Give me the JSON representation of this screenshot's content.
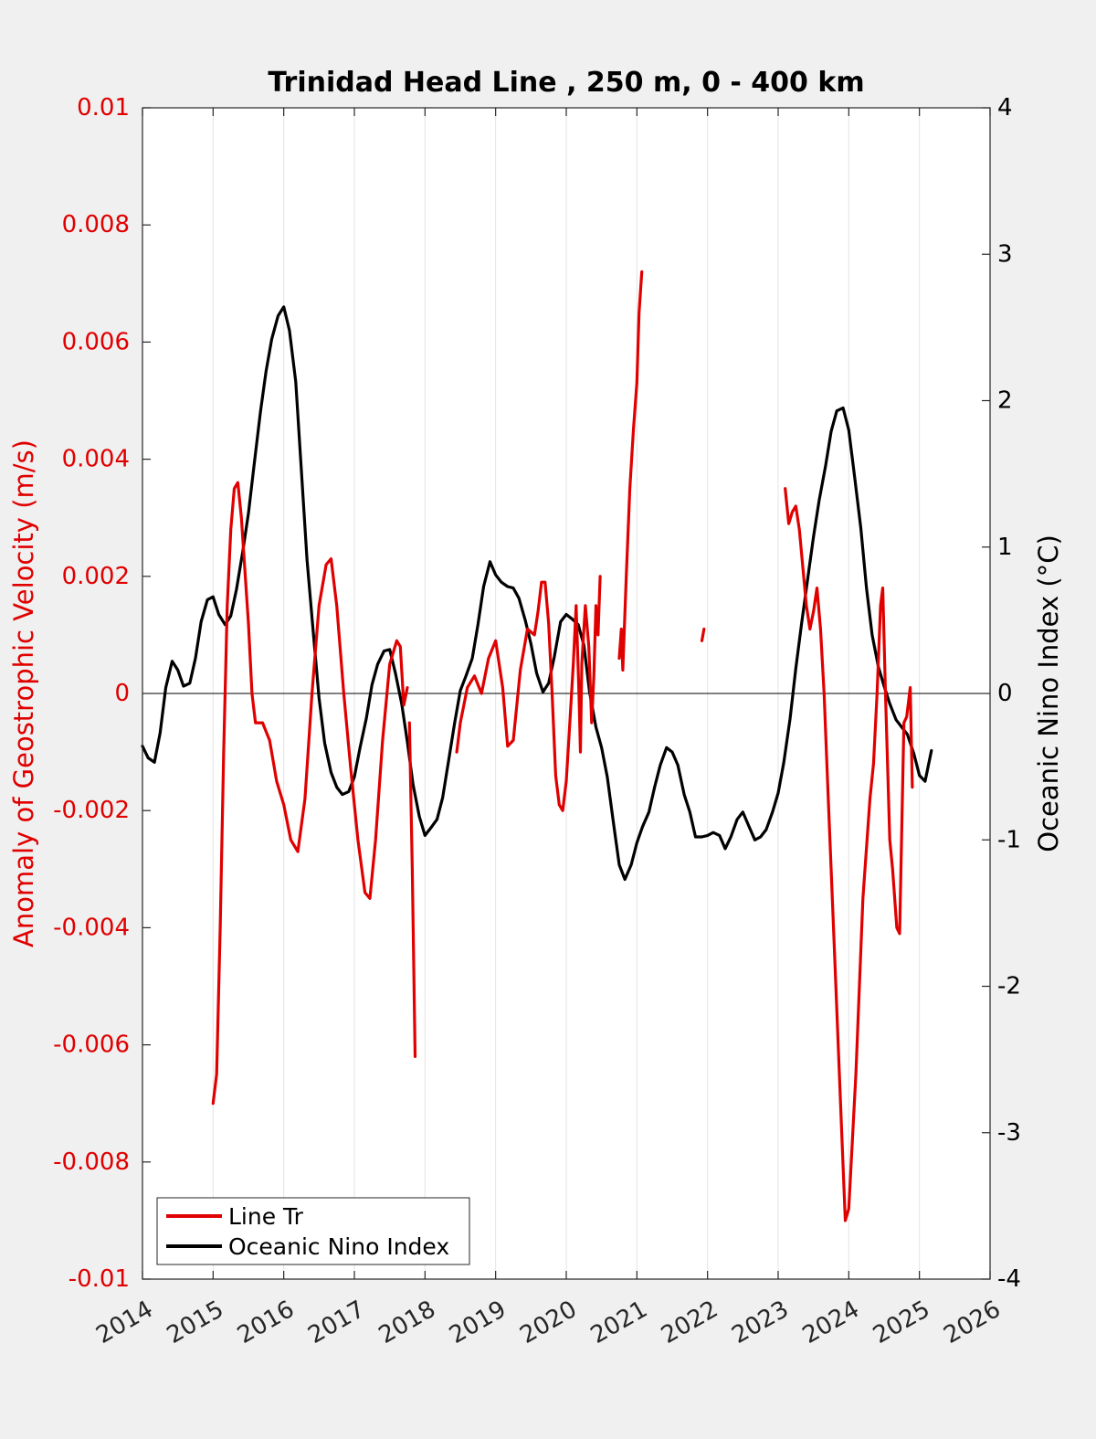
{
  "chart_data": {
    "type": "line",
    "title": "Trinidad Head Line , 250 m, 0 - 400 km",
    "xlim": [
      2014,
      2026
    ],
    "x_ticks": [
      "2014",
      "2015",
      "2016",
      "2017",
      "2018",
      "2019",
      "2020",
      "2021",
      "2022",
      "2023",
      "2024",
      "2025",
      "2026"
    ],
    "y_left": {
      "label": "Anomaly of Geostrophic Velocity (m/s)",
      "range": [
        -0.01,
        0.01
      ],
      "ticks": [
        "-0.01",
        "-0.008",
        "-0.006",
        "-0.004",
        "-0.002",
        "0",
        "0.002",
        "0.004",
        "0.006",
        "0.008",
        "0.01"
      ],
      "color": "#e00000"
    },
    "y_right": {
      "label": "Oceanic Nino Index (°C)",
      "range": [
        -4,
        4
      ],
      "ticks": [
        "-4",
        "-3",
        "-2",
        "-1",
        "0",
        "1",
        "2",
        "3",
        "4"
      ],
      "color": "#000000"
    },
    "grid": "vertical",
    "zero_line": true,
    "legend": {
      "position": "bottom-left"
    },
    "series": [
      {
        "name": "Line Tr",
        "axis": "left",
        "color": "#e00000",
        "segments": [
          [
            [
              2015.0,
              -0.007
            ],
            [
              2015.05,
              -0.0065
            ],
            [
              2015.1,
              -0.004
            ],
            [
              2015.15,
              -0.001
            ],
            [
              2015.2,
              0.0015
            ],
            [
              2015.25,
              0.0028
            ],
            [
              2015.3,
              0.0035
            ],
            [
              2015.35,
              0.0036
            ],
            [
              2015.4,
              0.003
            ],
            [
              2015.5,
              0.0012
            ],
            [
              2015.55,
              0.0
            ],
            [
              2015.6,
              -0.0005
            ],
            [
              2015.7,
              -0.0005
            ],
            [
              2015.8,
              -0.0008
            ],
            [
              2015.9,
              -0.0015
            ],
            [
              2016.0,
              -0.0019
            ],
            [
              2016.1,
              -0.0025
            ],
            [
              2016.2,
              -0.0027
            ],
            [
              2016.3,
              -0.0018
            ],
            [
              2016.4,
              0.0
            ],
            [
              2016.5,
              0.0015
            ],
            [
              2016.6,
              0.0022
            ],
            [
              2016.67,
              0.0023
            ],
            [
              2016.75,
              0.0015
            ],
            [
              2016.85,
              0.0
            ],
            [
              2016.95,
              -0.0013
            ],
            [
              2017.05,
              -0.0025
            ],
            [
              2017.15,
              -0.0034
            ],
            [
              2017.22,
              -0.0035
            ],
            [
              2017.3,
              -0.0025
            ],
            [
              2017.4,
              -0.0008
            ],
            [
              2017.5,
              0.0005
            ],
            [
              2017.6,
              0.0009
            ],
            [
              2017.65,
              0.0008
            ],
            [
              2017.7,
              -0.0002
            ],
            [
              2017.75,
              0.0001
            ]
          ],
          [
            [
              2017.78,
              -0.0005
            ],
            [
              2017.82,
              -0.003
            ],
            [
              2017.86,
              -0.0062
            ]
          ],
          [
            [
              2018.45,
              -0.001
            ],
            [
              2018.5,
              -0.0005
            ],
            [
              2018.6,
              0.0001
            ],
            [
              2018.7,
              0.0003
            ],
            [
              2018.8,
              0.0
            ],
            [
              2018.9,
              0.0006
            ],
            [
              2019.0,
              0.0009
            ],
            [
              2019.1,
              0.0001
            ],
            [
              2019.17,
              -0.0009
            ],
            [
              2019.25,
              -0.0008
            ],
            [
              2019.35,
              0.0004
            ],
            [
              2019.45,
              0.0011
            ],
            [
              2019.55,
              0.001
            ],
            [
              2019.6,
              0.0014
            ],
            [
              2019.65,
              0.0019
            ],
            [
              2019.7,
              0.0019
            ],
            [
              2019.75,
              0.0012
            ],
            [
              2019.8,
              0.0
            ],
            [
              2019.85,
              -0.0014
            ],
            [
              2019.9,
              -0.0019
            ],
            [
              2019.95,
              -0.002
            ],
            [
              2020.0,
              -0.0015
            ],
            [
              2020.05,
              -0.0005
            ],
            [
              2020.1,
              0.0005
            ],
            [
              2020.14,
              0.0015
            ],
            [
              2020.18,
              0.0
            ],
            [
              2020.2,
              -0.001
            ],
            [
              2020.22,
              0.0005
            ],
            [
              2020.27,
              0.0015
            ],
            [
              2020.32,
              0.0008
            ],
            [
              2020.36,
              -0.0005
            ],
            [
              2020.39,
              0.0003
            ],
            [
              2020.42,
              0.0015
            ],
            [
              2020.45,
              0.001
            ],
            [
              2020.48,
              0.002
            ]
          ],
          [
            [
              2020.75,
              0.0006
            ],
            [
              2020.78,
              0.0011
            ],
            [
              2020.8,
              0.0004
            ],
            [
              2020.85,
              0.002
            ],
            [
              2020.9,
              0.0035
            ],
            [
              2020.95,
              0.0045
            ],
            [
              2021.0,
              0.0053
            ],
            [
              2021.03,
              0.0065
            ],
            [
              2021.07,
              0.0072
            ]
          ],
          [
            [
              2021.92,
              0.0009
            ],
            [
              2021.95,
              0.0011
            ]
          ],
          [
            [
              2023.1,
              0.0035
            ],
            [
              2023.15,
              0.0029
            ],
            [
              2023.2,
              0.0031
            ],
            [
              2023.25,
              0.0032
            ],
            [
              2023.3,
              0.0028
            ],
            [
              2023.4,
              0.0015
            ],
            [
              2023.45,
              0.0011
            ],
            [
              2023.5,
              0.0014
            ],
            [
              2023.55,
              0.0018
            ],
            [
              2023.6,
              0.0011
            ],
            [
              2023.65,
              0.0
            ],
            [
              2023.7,
              -0.0015
            ],
            [
              2023.8,
              -0.0045
            ],
            [
              2023.9,
              -0.0075
            ],
            [
              2023.95,
              -0.009
            ],
            [
              2024.0,
              -0.0088
            ],
            [
              2024.1,
              -0.0065
            ],
            [
              2024.2,
              -0.0035
            ],
            [
              2024.3,
              -0.0018
            ],
            [
              2024.35,
              -0.0012
            ],
            [
              2024.4,
              0.0
            ],
            [
              2024.45,
              0.0015
            ],
            [
              2024.48,
              0.0018
            ],
            [
              2024.52,
              0.0
            ],
            [
              2024.58,
              -0.0025
            ],
            [
              2024.62,
              -0.003
            ],
            [
              2024.68,
              -0.004
            ],
            [
              2024.72,
              -0.0041
            ],
            [
              2024.78,
              -0.0005
            ],
            [
              2024.82,
              -0.0004
            ],
            [
              2024.87,
              0.0001
            ],
            [
              2024.9,
              -0.0016
            ]
          ]
        ]
      },
      {
        "name": "Oceanic Nino Index",
        "axis": "right",
        "color": "#000000",
        "points": [
          [
            2014.0,
            -0.36
          ],
          [
            2014.08,
            -0.44
          ],
          [
            2014.17,
            -0.47
          ],
          [
            2014.25,
            -0.27
          ],
          [
            2014.33,
            0.04
          ],
          [
            2014.42,
            0.22
          ],
          [
            2014.5,
            0.16
          ],
          [
            2014.58,
            0.05
          ],
          [
            2014.67,
            0.07
          ],
          [
            2014.75,
            0.24
          ],
          [
            2014.83,
            0.49
          ],
          [
            2014.92,
            0.64
          ],
          [
            2015.0,
            0.66
          ],
          [
            2015.08,
            0.54
          ],
          [
            2015.17,
            0.47
          ],
          [
            2015.25,
            0.53
          ],
          [
            2015.33,
            0.71
          ],
          [
            2015.42,
            0.97
          ],
          [
            2015.5,
            1.23
          ],
          [
            2015.58,
            1.56
          ],
          [
            2015.67,
            1.92
          ],
          [
            2015.75,
            2.2
          ],
          [
            2015.83,
            2.42
          ],
          [
            2015.92,
            2.58
          ],
          [
            2016.0,
            2.64
          ],
          [
            2016.08,
            2.48
          ],
          [
            2016.17,
            2.13
          ],
          [
            2016.25,
            1.52
          ],
          [
            2016.33,
            0.91
          ],
          [
            2016.42,
            0.41
          ],
          [
            2016.5,
            -0.03
          ],
          [
            2016.58,
            -0.34
          ],
          [
            2016.67,
            -0.54
          ],
          [
            2016.75,
            -0.64
          ],
          [
            2016.83,
            -0.69
          ],
          [
            2016.92,
            -0.67
          ],
          [
            2017.0,
            -0.57
          ],
          [
            2017.08,
            -0.37
          ],
          [
            2017.17,
            -0.17
          ],
          [
            2017.25,
            0.06
          ],
          [
            2017.33,
            0.2
          ],
          [
            2017.42,
            0.29
          ],
          [
            2017.5,
            0.3
          ],
          [
            2017.58,
            0.14
          ],
          [
            2017.67,
            -0.07
          ],
          [
            2017.75,
            -0.33
          ],
          [
            2017.83,
            -0.62
          ],
          [
            2017.92,
            -0.84
          ],
          [
            2018.0,
            -0.97
          ],
          [
            2018.08,
            -0.92
          ],
          [
            2018.17,
            -0.86
          ],
          [
            2018.25,
            -0.71
          ],
          [
            2018.33,
            -0.47
          ],
          [
            2018.42,
            -0.2
          ],
          [
            2018.5,
            0.02
          ],
          [
            2018.58,
            0.12
          ],
          [
            2018.67,
            0.24
          ],
          [
            2018.75,
            0.47
          ],
          [
            2018.83,
            0.73
          ],
          [
            2018.92,
            0.9
          ],
          [
            2019.0,
            0.81
          ],
          [
            2019.08,
            0.76
          ],
          [
            2019.17,
            0.73
          ],
          [
            2019.25,
            0.72
          ],
          [
            2019.33,
            0.65
          ],
          [
            2019.42,
            0.5
          ],
          [
            2019.5,
            0.34
          ],
          [
            2019.58,
            0.14
          ],
          [
            2019.67,
            0.01
          ],
          [
            2019.75,
            0.07
          ],
          [
            2019.83,
            0.25
          ],
          [
            2019.92,
            0.49
          ],
          [
            2020.0,
            0.54
          ],
          [
            2020.08,
            0.51
          ],
          [
            2020.17,
            0.47
          ],
          [
            2020.25,
            0.33
          ],
          [
            2020.33,
            0.01
          ],
          [
            2020.42,
            -0.23
          ],
          [
            2020.5,
            -0.37
          ],
          [
            2020.58,
            -0.57
          ],
          [
            2020.67,
            -0.89
          ],
          [
            2020.75,
            -1.17
          ],
          [
            2020.83,
            -1.27
          ],
          [
            2020.92,
            -1.17
          ],
          [
            2021.0,
            -1.02
          ],
          [
            2021.08,
            -0.91
          ],
          [
            2021.17,
            -0.81
          ],
          [
            2021.25,
            -0.64
          ],
          [
            2021.33,
            -0.49
          ],
          [
            2021.42,
            -0.37
          ],
          [
            2021.5,
            -0.4
          ],
          [
            2021.58,
            -0.49
          ],
          [
            2021.67,
            -0.69
          ],
          [
            2021.75,
            -0.81
          ],
          [
            2021.83,
            -0.98
          ],
          [
            2021.92,
            -0.98
          ],
          [
            2022.0,
            -0.97
          ],
          [
            2022.08,
            -0.95
          ],
          [
            2022.17,
            -0.97
          ],
          [
            2022.25,
            -1.06
          ],
          [
            2022.33,
            -0.98
          ],
          [
            2022.42,
            -0.86
          ],
          [
            2022.5,
            -0.81
          ],
          [
            2022.58,
            -0.9
          ],
          [
            2022.67,
            -1.0
          ],
          [
            2022.75,
            -0.98
          ],
          [
            2022.83,
            -0.93
          ],
          [
            2022.92,
            -0.81
          ],
          [
            2023.0,
            -0.68
          ],
          [
            2023.08,
            -0.47
          ],
          [
            2023.17,
            -0.17
          ],
          [
            2023.25,
            0.17
          ],
          [
            2023.33,
            0.47
          ],
          [
            2023.42,
            0.79
          ],
          [
            2023.5,
            1.07
          ],
          [
            2023.58,
            1.32
          ],
          [
            2023.67,
            1.55
          ],
          [
            2023.75,
            1.79
          ],
          [
            2023.83,
            1.93
          ],
          [
            2023.92,
            1.95
          ],
          [
            2024.0,
            1.8
          ],
          [
            2024.08,
            1.49
          ],
          [
            2024.17,
            1.13
          ],
          [
            2024.25,
            0.72
          ],
          [
            2024.33,
            0.4
          ],
          [
            2024.42,
            0.18
          ],
          [
            2024.5,
            0.05
          ],
          [
            2024.58,
            -0.07
          ],
          [
            2024.67,
            -0.18
          ],
          [
            2024.75,
            -0.23
          ],
          [
            2024.83,
            -0.28
          ],
          [
            2024.92,
            -0.41
          ],
          [
            2025.0,
            -0.56
          ],
          [
            2025.08,
            -0.6
          ],
          [
            2025.17,
            -0.39
          ]
        ]
      }
    ]
  }
}
